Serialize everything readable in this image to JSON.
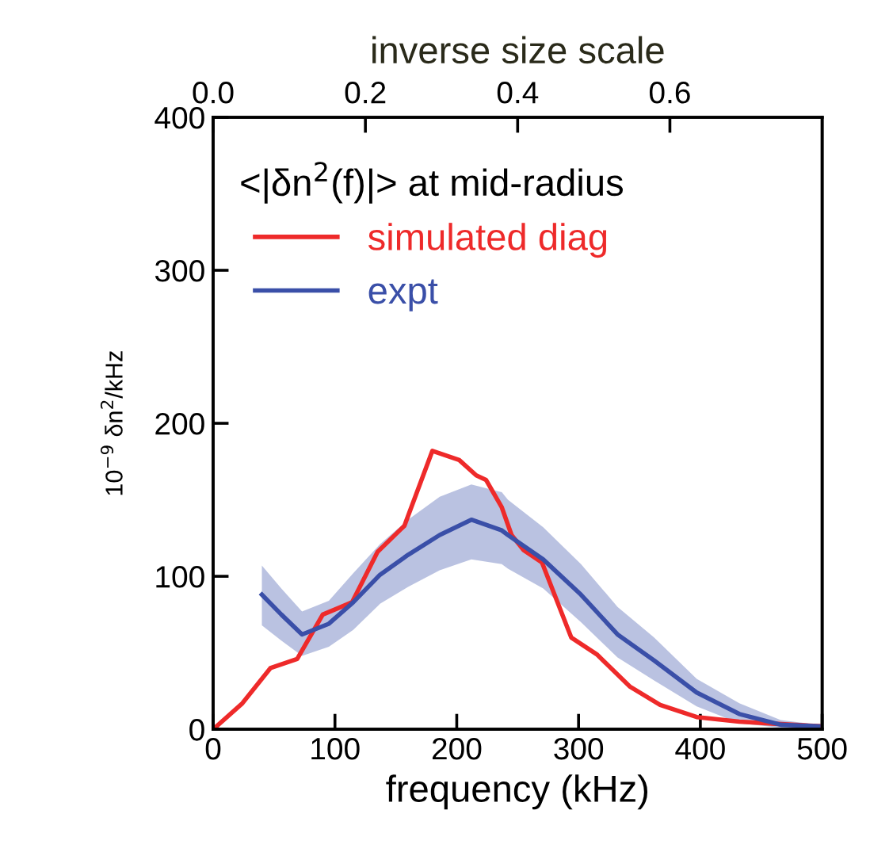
{
  "chart_data": {
    "type": "line",
    "xlabel": "frequency (kHz)",
    "ylabel": "10$^{−9}$ δn$^{2}$/kHz",
    "x2label": "inverse size scale",
    "legend_title": "<|δn$^{2}$(f)|> at mid-radius",
    "legend": "top left",
    "xlim": [
      0,
      500
    ],
    "xticks": [
      0,
      100,
      200,
      300,
      400,
      500
    ],
    "ylim": [
      0,
      400
    ],
    "yticks": [
      0,
      100,
      200,
      300,
      400
    ],
    "x2lim": [
      0,
      0.8
    ],
    "x2ticks": [
      {
        "value": 0,
        "label": "0.0"
      },
      0.2,
      0.4,
      0.6
    ],
    "grid": false,
    "marker": "none",
    "line_style": "solid",
    "series": [
      {
        "name": "simulated diag",
        "color": "#ee2a2a",
        "x": [
          0,
          24,
          47,
          69,
          90,
          114,
          135,
          157,
          180,
          202,
          216,
          224,
          237,
          245,
          255,
          270,
          294,
          315,
          342,
          367,
          397,
          432,
          475,
          500
        ],
        "values": [
          0,
          17,
          40,
          46,
          75,
          83,
          116,
          133,
          182,
          176,
          166,
          163,
          145,
          127,
          117,
          109,
          60,
          49,
          28,
          16,
          8,
          5,
          3,
          2
        ]
      },
      {
        "name": "expt",
        "color": "#3a4fa8",
        "x": [
          40,
          56,
          73,
          95,
          115,
          137,
          160,
          186,
          212,
          237,
          242,
          271,
          302,
          332,
          362,
          397,
          432,
          466,
          497
        ],
        "values": [
          88,
          75,
          62,
          69,
          83,
          101,
          114,
          127,
          137,
          130,
          127,
          111,
          88,
          62,
          45,
          24,
          10,
          3,
          2
        ],
        "lower": [
          68,
          58,
          48,
          54,
          65,
          82,
          93,
          104,
          111,
          108,
          105,
          92,
          70,
          47,
          32,
          15,
          4,
          1,
          0
        ],
        "upper": [
          107,
          92,
          77,
          84,
          102,
          121,
          137,
          152,
          160,
          155,
          150,
          132,
          108,
          80,
          60,
          33,
          17,
          6,
          3
        ]
      }
    ]
  }
}
